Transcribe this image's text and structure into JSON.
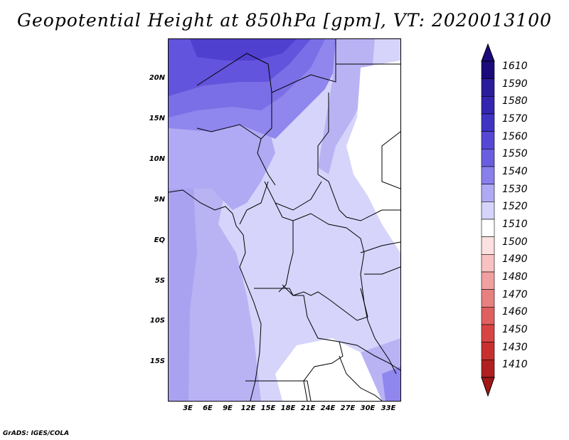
{
  "title": "Geopotential Height at 850hPa [gpm], VT: 2020013100",
  "footer": "GrADS: IGES/COLA",
  "map": {
    "variable": "Geopotential Height",
    "level": "850hPa",
    "units": "gpm",
    "valid_time": "2020013100",
    "lon_range": [
      0,
      35
    ],
    "lat_range": [
      -20,
      25
    ],
    "lat_labels": [
      {
        "lat": 20,
        "label": "20N"
      },
      {
        "lat": 15,
        "label": "15N"
      },
      {
        "lat": 10,
        "label": "10N"
      },
      {
        "lat": 5,
        "label": "5N"
      },
      {
        "lat": 0,
        "label": "EQ"
      },
      {
        "lat": -5,
        "label": "5S"
      },
      {
        "lat": -10,
        "label": "10S"
      },
      {
        "lat": -15,
        "label": "15S"
      }
    ],
    "lon_labels": [
      {
        "lon": 3,
        "label": "3E"
      },
      {
        "lon": 6,
        "label": "6E"
      },
      {
        "lon": 9,
        "label": "9E"
      },
      {
        "lon": 12,
        "label": "12E"
      },
      {
        "lon": 15,
        "label": "15E"
      },
      {
        "lon": 18,
        "label": "18E"
      },
      {
        "lon": 21,
        "label": "21E"
      },
      {
        "lon": 24,
        "label": "24E"
      },
      {
        "lon": 27,
        "label": "27E"
      },
      {
        "lon": 30,
        "label": "30E"
      },
      {
        "lon": 33,
        "label": "33E"
      }
    ]
  },
  "legend": {
    "levels": [
      {
        "value": "1610",
        "color": "#1a0a7a"
      },
      {
        "value": "1590",
        "color": "#2a1c9a"
      },
      {
        "value": "1580",
        "color": "#3325b0"
      },
      {
        "value": "1570",
        "color": "#3f33c4"
      },
      {
        "value": "1560",
        "color": "#5648d4"
      },
      {
        "value": "1550",
        "color": "#6a5ee0"
      },
      {
        "value": "1540",
        "color": "#8a80ec"
      },
      {
        "value": "1530",
        "color": "#b0aaf4"
      },
      {
        "value": "1520",
        "color": "#d6d4fa"
      },
      {
        "value": "1510",
        "color": "#ffffff"
      },
      {
        "value": "1500",
        "color": "#fde0e0"
      },
      {
        "value": "1490",
        "color": "#f8c2c2"
      },
      {
        "value": "1480",
        "color": "#f0a0a0"
      },
      {
        "value": "1470",
        "color": "#e88080"
      },
      {
        "value": "1460",
        "color": "#e06060"
      },
      {
        "value": "1450",
        "color": "#d84444"
      },
      {
        "value": "1430",
        "color": "#c83030"
      },
      {
        "value": "1410",
        "color": "#b02020"
      }
    ],
    "top_color": "#1a0a7a",
    "bottom_color": "#a01818"
  }
}
